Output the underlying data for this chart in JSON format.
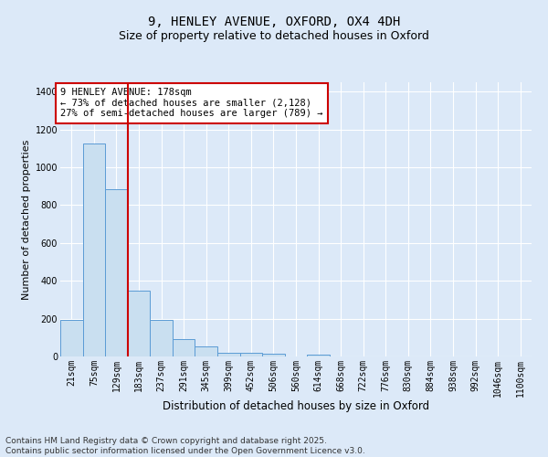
{
  "title1": "9, HENLEY AVENUE, OXFORD, OX4 4DH",
  "title2": "Size of property relative to detached houses in Oxford",
  "xlabel": "Distribution of detached houses by size in Oxford",
  "ylabel": "Number of detached properties",
  "categories": [
    "21sqm",
    "75sqm",
    "129sqm",
    "183sqm",
    "237sqm",
    "291sqm",
    "345sqm",
    "399sqm",
    "452sqm",
    "506sqm",
    "560sqm",
    "614sqm",
    "668sqm",
    "722sqm",
    "776sqm",
    "830sqm",
    "884sqm",
    "938sqm",
    "992sqm",
    "1046sqm",
    "1100sqm"
  ],
  "values": [
    195,
    1125,
    885,
    350,
    195,
    90,
    55,
    20,
    20,
    15,
    0,
    10,
    0,
    0,
    0,
    0,
    0,
    0,
    0,
    0,
    0
  ],
  "bar_color": "#c9dff0",
  "bar_edge_color": "#5b9bd5",
  "vline_color": "#cc0000",
  "vline_pos": 2.5,
  "annotation_text": "9 HENLEY AVENUE: 178sqm\n← 73% of detached houses are smaller (2,128)\n27% of semi-detached houses are larger (789) →",
  "annotation_box_color": "#ffffff",
  "annotation_box_edge_color": "#cc0000",
  "ylim": [
    0,
    1450
  ],
  "yticks": [
    0,
    200,
    400,
    600,
    800,
    1000,
    1200,
    1400
  ],
  "bg_color": "#dce9f8",
  "grid_color": "#ffffff",
  "footnote": "Contains HM Land Registry data © Crown copyright and database right 2025.\nContains public sector information licensed under the Open Government Licence v3.0.",
  "title1_fontsize": 10,
  "title2_fontsize": 9,
  "xlabel_fontsize": 8.5,
  "ylabel_fontsize": 8,
  "tick_fontsize": 7,
  "annotation_fontsize": 7.5,
  "footnote_fontsize": 6.5
}
